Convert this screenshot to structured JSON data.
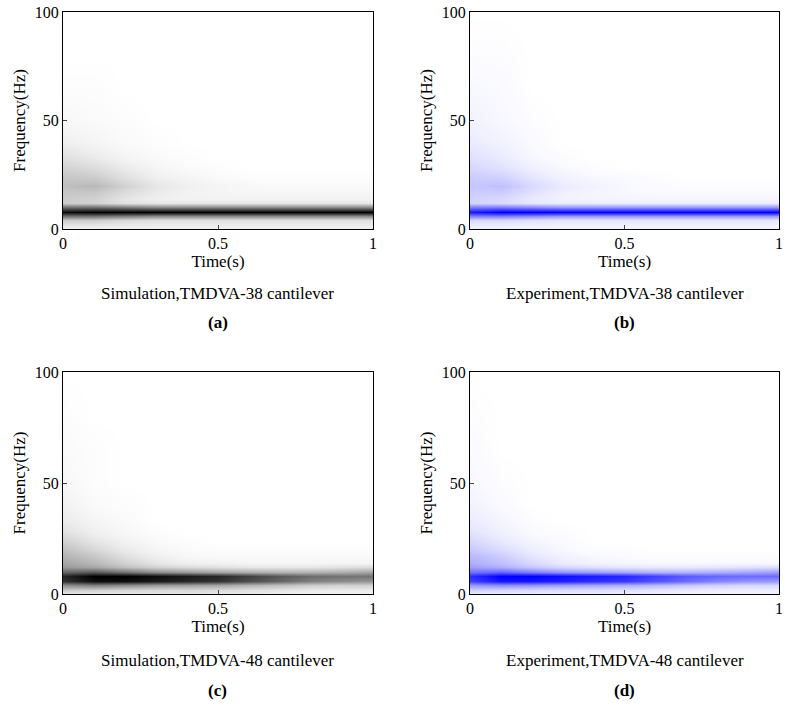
{
  "chart_data": [
    {
      "type": "heatmap",
      "title": "Simulation,TMDVA-38 cantilever",
      "panel": "(a)",
      "xlabel": "Time(s)",
      "ylabel": "Frequency(Hz)",
      "color": "#000000",
      "xlim": [
        0,
        1
      ],
      "ylim": [
        0,
        100
      ],
      "xticks": [
        0,
        0.5,
        1
      ],
      "yticks": [
        0,
        50,
        100
      ],
      "zlim": [
        0,
        100
      ],
      "x": [
        0,
        0.1,
        0.2,
        0.3,
        0.4,
        0.5,
        0.6,
        0.7,
        0.8,
        0.9,
        1
      ],
      "y": [
        0,
        2,
        4,
        6,
        8,
        10,
        12,
        14,
        17,
        20,
        24,
        28,
        33,
        40,
        50,
        65,
        80,
        100
      ],
      "z": [
        [
          5,
          5,
          5,
          5,
          5,
          5,
          5,
          5,
          5,
          5,
          5
        ],
        [
          10,
          10,
          8,
          8,
          8,
          8,
          8,
          8,
          8,
          8,
          8
        ],
        [
          20,
          20,
          15,
          12,
          12,
          12,
          12,
          12,
          12,
          12,
          12
        ],
        [
          55,
          55,
          50,
          45,
          45,
          45,
          45,
          45,
          45,
          45,
          45
        ],
        [
          95,
          100,
          100,
          100,
          100,
          100,
          100,
          100,
          100,
          100,
          100
        ],
        [
          55,
          55,
          50,
          45,
          45,
          45,
          45,
          45,
          45,
          45,
          45
        ],
        [
          20,
          18,
          12,
          10,
          10,
          10,
          10,
          10,
          10,
          10,
          10
        ],
        [
          20,
          18,
          10,
          6,
          5,
          5,
          5,
          5,
          5,
          5,
          5
        ],
        [
          22,
          22,
          14,
          8,
          5,
          4,
          3,
          3,
          3,
          3,
          3
        ],
        [
          25,
          28,
          18,
          10,
          6,
          4,
          3,
          2,
          2,
          2,
          2
        ],
        [
          22,
          20,
          12,
          6,
          4,
          2,
          1,
          1,
          1,
          1,
          1
        ],
        [
          18,
          14,
          8,
          4,
          2,
          1,
          0,
          0,
          0,
          0,
          0
        ],
        [
          12,
          8,
          4,
          2,
          1,
          0,
          0,
          0,
          0,
          0,
          0
        ],
        [
          6,
          4,
          2,
          1,
          0,
          0,
          0,
          0,
          0,
          0,
          0
        ],
        [
          3,
          2,
          1,
          0,
          0,
          0,
          0,
          0,
          0,
          0,
          0
        ],
        [
          1,
          1,
          0,
          0,
          0,
          0,
          0,
          0,
          0,
          0,
          0
        ],
        [
          0,
          0,
          0,
          0,
          0,
          0,
          0,
          0,
          0,
          0,
          0
        ],
        [
          0,
          0,
          0,
          0,
          0,
          0,
          0,
          0,
          0,
          0,
          0
        ]
      ]
    },
    {
      "type": "heatmap",
      "title": "Experiment,TMDVA-38 cantilever",
      "panel": "(b)",
      "xlabel": "Time(s)",
      "ylabel": "Frequency(Hz)",
      "color": "#0000ff",
      "xlim": [
        0,
        1
      ],
      "ylim": [
        0,
        100
      ],
      "xticks": [
        0,
        0.5,
        1
      ],
      "yticks": [
        0,
        50,
        100
      ],
      "zlim": [
        0,
        100
      ],
      "x": [
        0,
        0.1,
        0.2,
        0.3,
        0.4,
        0.5,
        0.6,
        0.7,
        0.8,
        0.9,
        1
      ],
      "y": [
        0,
        2,
        4,
        6,
        8,
        10,
        12,
        14,
        17,
        20,
        24,
        28,
        33,
        40,
        50,
        65,
        80,
        100
      ],
      "z": [
        [
          4,
          4,
          4,
          4,
          4,
          4,
          4,
          4,
          4,
          4,
          4
        ],
        [
          8,
          8,
          6,
          6,
          6,
          6,
          6,
          6,
          6,
          6,
          6
        ],
        [
          15,
          15,
          12,
          10,
          10,
          10,
          10,
          10,
          10,
          10,
          10
        ],
        [
          50,
          50,
          45,
          40,
          40,
          40,
          40,
          40,
          40,
          40,
          40
        ],
        [
          90,
          100,
          100,
          100,
          100,
          100,
          100,
          100,
          100,
          100,
          100
        ],
        [
          50,
          50,
          45,
          40,
          40,
          40,
          40,
          40,
          40,
          40,
          40
        ],
        [
          18,
          15,
          10,
          8,
          8,
          8,
          8,
          8,
          8,
          8,
          8
        ],
        [
          18,
          15,
          8,
          5,
          4,
          4,
          4,
          4,
          4,
          4,
          4
        ],
        [
          20,
          20,
          12,
          6,
          4,
          3,
          2,
          2,
          2,
          2,
          2
        ],
        [
          22,
          25,
          15,
          8,
          5,
          3,
          2,
          1,
          1,
          1,
          1
        ],
        [
          20,
          18,
          10,
          5,
          3,
          2,
          1,
          0,
          0,
          0,
          0
        ],
        [
          16,
          12,
          6,
          3,
          1,
          0,
          0,
          0,
          0,
          0,
          0
        ],
        [
          12,
          8,
          3,
          1,
          0,
          0,
          0,
          0,
          0,
          0,
          0
        ],
        [
          8,
          5,
          2,
          0,
          0,
          0,
          0,
          0,
          0,
          0,
          0
        ],
        [
          5,
          3,
          1,
          0,
          0,
          0,
          0,
          0,
          0,
          0,
          0
        ],
        [
          3,
          2,
          0,
          0,
          0,
          0,
          0,
          0,
          0,
          0,
          0
        ],
        [
          1,
          1,
          0,
          0,
          0,
          0,
          0,
          0,
          0,
          0,
          0
        ],
        [
          0,
          0,
          0,
          0,
          0,
          0,
          0,
          0,
          0,
          0,
          0
        ]
      ]
    },
    {
      "type": "heatmap",
      "title": "Simulation,TMDVA-48 cantilever",
      "panel": "(c)",
      "xlabel": "Time(s)",
      "ylabel": "Frequency(Hz)",
      "color": "#000000",
      "xlim": [
        0,
        1
      ],
      "ylim": [
        0,
        100
      ],
      "xticks": [
        0,
        0.5,
        1
      ],
      "yticks": [
        0,
        50,
        100
      ],
      "zlim": [
        0,
        100
      ],
      "x": [
        0,
        0.1,
        0.2,
        0.3,
        0.4,
        0.5,
        0.6,
        0.7,
        0.8,
        0.9,
        1
      ],
      "y": [
        0,
        2,
        4,
        6,
        8,
        10,
        12,
        14,
        17,
        20,
        24,
        28,
        33,
        40,
        50,
        65,
        80,
        100
      ],
      "z": [
        [
          8,
          8,
          8,
          8,
          8,
          8,
          8,
          6,
          5,
          5,
          5
        ],
        [
          20,
          18,
          16,
          15,
          15,
          14,
          12,
          10,
          8,
          8,
          8
        ],
        [
          45,
          50,
          45,
          40,
          38,
          35,
          30,
          25,
          20,
          18,
          18
        ],
        [
          80,
          95,
          95,
          90,
          85,
          80,
          70,
          60,
          50,
          45,
          42
        ],
        [
          85,
          100,
          100,
          95,
          90,
          85,
          75,
          65,
          58,
          55,
          55
        ],
        [
          60,
          65,
          55,
          45,
          40,
          35,
          32,
          30,
          30,
          32,
          35
        ],
        [
          40,
          35,
          25,
          18,
          14,
          12,
          10,
          10,
          10,
          12,
          14
        ],
        [
          35,
          28,
          18,
          10,
          6,
          5,
          4,
          4,
          4,
          4,
          4
        ],
        [
          30,
          22,
          12,
          6,
          3,
          2,
          2,
          2,
          2,
          2,
          2
        ],
        [
          25,
          16,
          8,
          4,
          2,
          1,
          1,
          1,
          1,
          1,
          1
        ],
        [
          18,
          10,
          5,
          2,
          1,
          0,
          0,
          0,
          0,
          0,
          0
        ],
        [
          12,
          6,
          3,
          1,
          0,
          0,
          0,
          0,
          0,
          0,
          0
        ],
        [
          8,
          4,
          2,
          0,
          0,
          0,
          0,
          0,
          0,
          0,
          0
        ],
        [
          5,
          2,
          1,
          0,
          0,
          0,
          0,
          0,
          0,
          0,
          0
        ],
        [
          3,
          1,
          0,
          0,
          0,
          0,
          0,
          0,
          0,
          0,
          0
        ],
        [
          2,
          1,
          0,
          0,
          0,
          0,
          0,
          0,
          0,
          0,
          0
        ],
        [
          1,
          0,
          0,
          0,
          0,
          0,
          0,
          0,
          0,
          0,
          0
        ],
        [
          0,
          0,
          0,
          0,
          0,
          0,
          0,
          0,
          0,
          0,
          0
        ]
      ]
    },
    {
      "type": "heatmap",
      "title": "Experiment,TMDVA-48 cantilever",
      "panel": "(d)",
      "xlabel": "Time(s)",
      "ylabel": "Frequency(Hz)",
      "color": "#0000ff",
      "xlim": [
        0,
        1
      ],
      "ylim": [
        0,
        100
      ],
      "xticks": [
        0,
        0.5,
        1
      ],
      "yticks": [
        0,
        50,
        100
      ],
      "zlim": [
        0,
        100
      ],
      "x": [
        0,
        0.1,
        0.2,
        0.3,
        0.4,
        0.5,
        0.6,
        0.7,
        0.8,
        0.9,
        1
      ],
      "y": [
        0,
        2,
        4,
        6,
        8,
        10,
        12,
        14,
        17,
        20,
        24,
        28,
        33,
        40,
        50,
        65,
        80,
        100
      ],
      "z": [
        [
          6,
          6,
          6,
          6,
          6,
          6,
          6,
          5,
          4,
          4,
          4
        ],
        [
          18,
          16,
          14,
          13,
          13,
          12,
          10,
          8,
          7,
          7,
          7
        ],
        [
          40,
          45,
          42,
          38,
          35,
          32,
          28,
          22,
          18,
          16,
          16
        ],
        [
          75,
          92,
          92,
          88,
          82,
          78,
          68,
          58,
          48,
          42,
          40
        ],
        [
          82,
          100,
          100,
          95,
          90,
          85,
          75,
          65,
          60,
          58,
          58
        ],
        [
          55,
          60,
          50,
          42,
          38,
          34,
          30,
          30,
          32,
          35,
          38
        ],
        [
          38,
          32,
          22,
          16,
          12,
          10,
          9,
          9,
          10,
          12,
          14
        ],
        [
          32,
          25,
          15,
          8,
          5,
          4,
          3,
          3,
          3,
          3,
          3
        ],
        [
          28,
          20,
          10,
          5,
          3,
          2,
          1,
          1,
          1,
          1,
          1
        ],
        [
          22,
          14,
          7,
          3,
          1,
          1,
          0,
          0,
          0,
          0,
          0
        ],
        [
          16,
          9,
          4,
          2,
          0,
          0,
          0,
          0,
          0,
          0,
          0
        ],
        [
          11,
          6,
          2,
          1,
          0,
          0,
          0,
          0,
          0,
          0,
          0
        ],
        [
          8,
          4,
          1,
          0,
          0,
          0,
          0,
          0,
          0,
          0,
          0
        ],
        [
          5,
          2,
          0,
          0,
          0,
          0,
          0,
          0,
          0,
          0,
          0
        ],
        [
          3,
          1,
          0,
          0,
          0,
          0,
          0,
          0,
          0,
          0,
          0
        ],
        [
          2,
          0,
          0,
          0,
          0,
          0,
          0,
          0,
          0,
          0,
          0
        ],
        [
          1,
          0,
          0,
          0,
          0,
          0,
          0,
          0,
          0,
          0,
          0
        ],
        [
          0,
          0,
          0,
          0,
          0,
          0,
          0,
          0,
          0,
          0,
          0
        ]
      ]
    }
  ]
}
